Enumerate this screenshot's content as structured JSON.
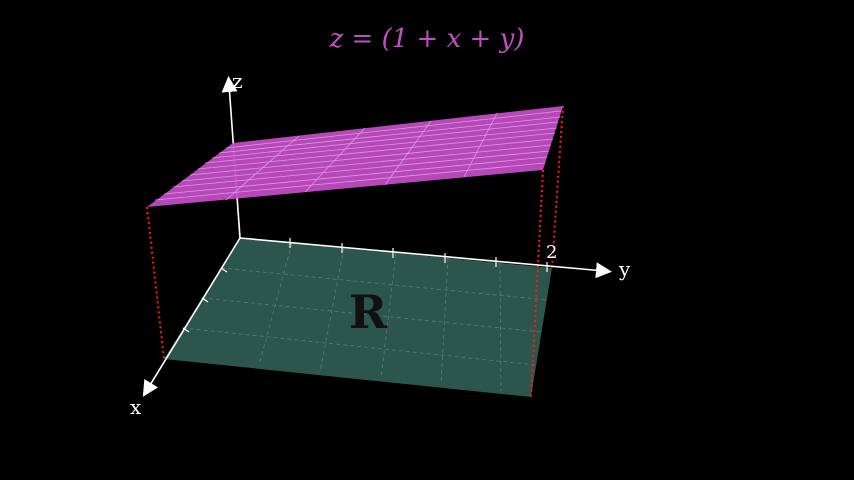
{
  "title": "z = (1 + x + y)",
  "axes": {
    "z_label": "z",
    "y_label": "y",
    "x_label": "x",
    "y_tick_label": "2"
  },
  "region": {
    "label": "R"
  },
  "colors": {
    "background": "#000000",
    "surface_fill": "#c04cc4",
    "surface_grid": "#e6a6e8",
    "region_fill": "#2e5a50",
    "region_grid": "#5f8a80",
    "projection_lines": "#ff1a1a",
    "axes": "#ffffff",
    "title": "#c34fc6",
    "region_label": "#111111"
  }
}
